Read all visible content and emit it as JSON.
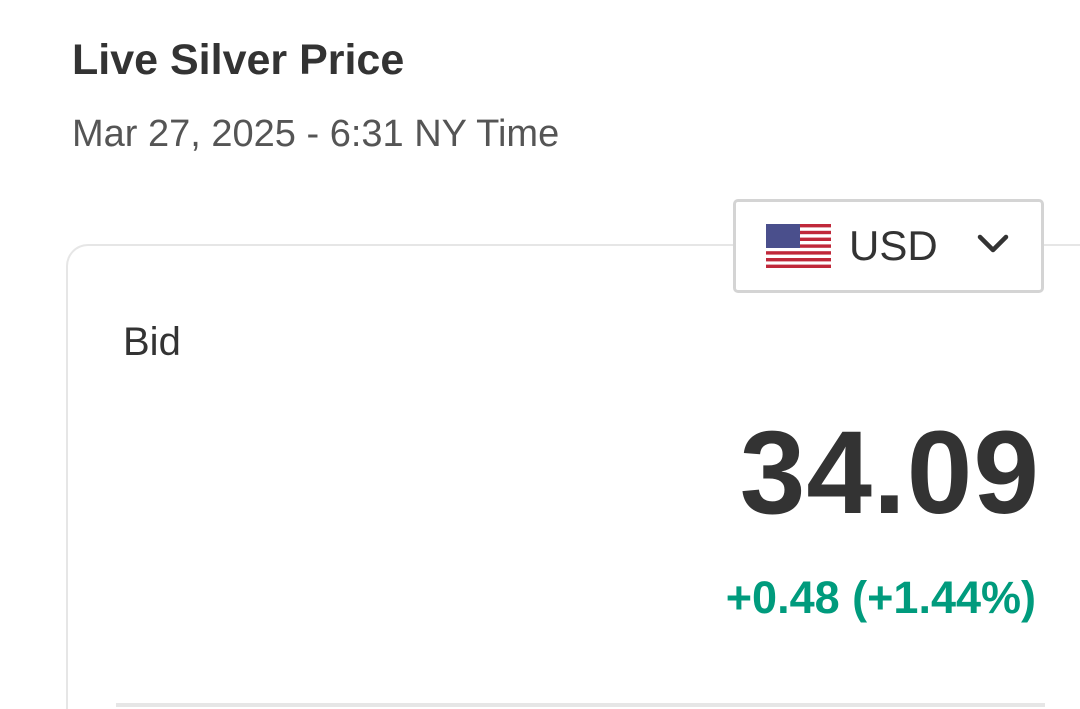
{
  "header": {
    "title": "Live Silver Price",
    "timestamp": "Mar 27, 2025 - 6:31 NY Time"
  },
  "currency_selector": {
    "selected": "USD",
    "flag_icon": "us-flag-icon",
    "chevron_icon": "chevron-down-icon"
  },
  "quote": {
    "label": "Bid",
    "price": "34.09",
    "change": "+0.48 (+1.44%)",
    "change_color": "#009b7d"
  }
}
